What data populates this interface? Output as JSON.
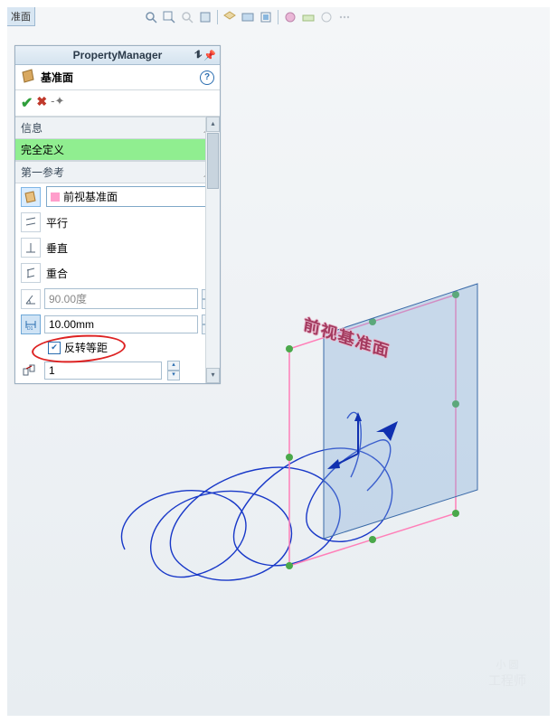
{
  "tab": {
    "label": "准面"
  },
  "property_manager": {
    "title": "PropertyManager",
    "feature_name": "基准面",
    "info_header": "信息",
    "status": "完全定义",
    "first_ref_header": "第一参考",
    "reference_value": "前视基准面",
    "constraints": {
      "parallel": "平行",
      "perpendicular": "垂直",
      "coincident": "重合"
    },
    "angle": {
      "value": "90.00度",
      "enabled": false
    },
    "distance": {
      "value": "10.00mm",
      "enabled": true
    },
    "flip_offset": {
      "label": "反转等距",
      "checked": true
    },
    "instances": {
      "value": "1"
    }
  },
  "scene": {
    "plane_label": "前视基准面",
    "plane_fill": "#7fa8d8",
    "plane_fill_opacity": 0.35,
    "plane_border": "#ff7fb8",
    "handle_color": "#4aa84a",
    "helix_color": "#1838c8",
    "arrow_color": "#1030b0"
  },
  "watermark": {
    "line1": "小 圆",
    "line2": "工程师"
  },
  "colors": {
    "status_ok_bg": "#90ee90",
    "annotation": "#d22"
  }
}
